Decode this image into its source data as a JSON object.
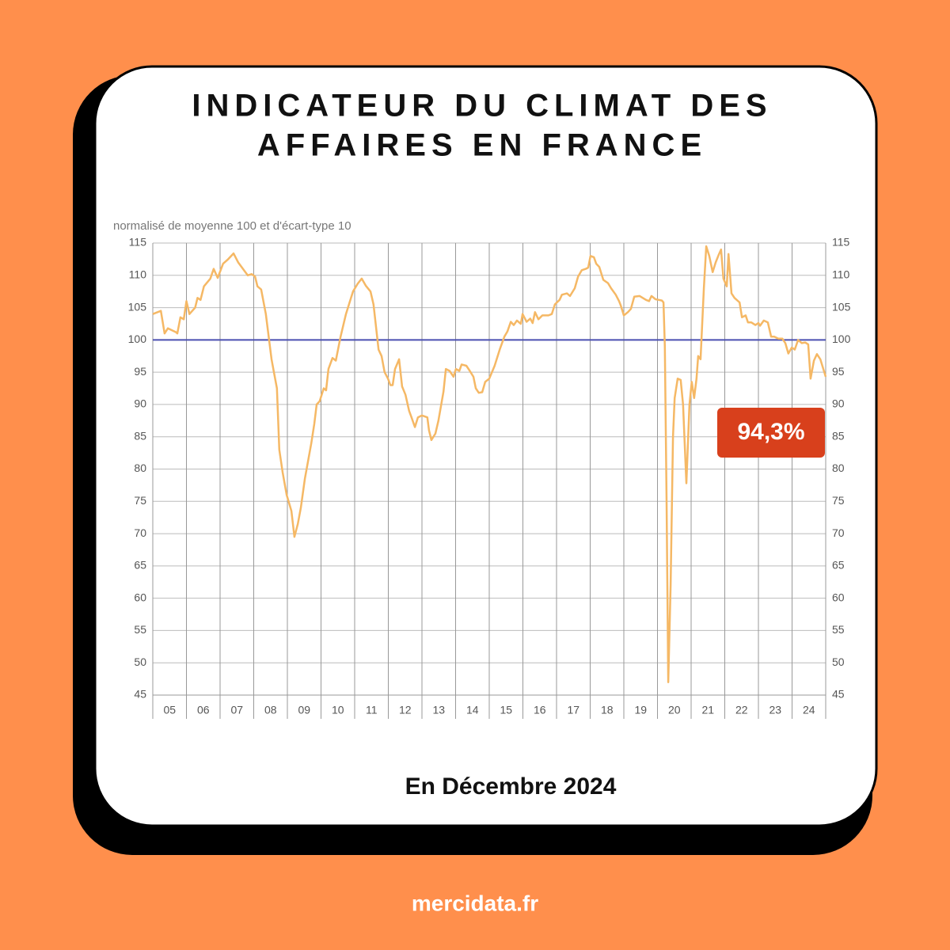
{
  "chart_data": {
    "type": "line",
    "title": [
      "INDICATEUR DU CLIMAT DES",
      "AFFAIRES EN FRANCE"
    ],
    "y_label": "normalisé de moyenne 100 et d'écart-type 10",
    "color": "#f5b865",
    "reference_line": 100,
    "reference_color": "#4a4fb0",
    "annotation": "94,3%",
    "grid": true,
    "x": [
      5.0,
      5.24,
      5.35,
      5.45,
      5.69,
      5.73,
      5.82,
      5.92,
      6.0,
      6.09,
      6.26,
      6.33,
      6.42,
      6.52,
      6.71,
      6.81,
      6.93,
      7.09,
      7.24,
      7.4,
      7.54,
      7.82,
      7.94,
      8.04,
      8.11,
      8.22,
      8.36,
      8.53,
      8.6,
      8.69,
      8.76,
      8.86,
      8.98,
      9.12,
      9.21,
      9.31,
      9.4,
      9.52,
      9.71,
      9.8,
      9.87,
      9.96,
      10.08,
      10.15,
      10.22,
      10.34,
      10.44,
      10.58,
      10.74,
      10.95,
      11.09,
      11.21,
      11.33,
      11.47,
      11.56,
      11.71,
      11.8,
      11.89,
      11.99,
      12.06,
      12.13,
      12.2,
      12.32,
      12.41,
      12.51,
      12.62,
      12.69,
      12.79,
      12.88,
      13.0,
      13.16,
      13.21,
      13.28,
      13.4,
      13.49,
      13.64,
      13.71,
      13.82,
      13.94,
      14.01,
      14.11,
      14.18,
      14.32,
      14.41,
      14.53,
      14.6,
      14.69,
      14.79,
      14.88,
      15.0,
      15.16,
      15.31,
      15.45,
      15.54,
      15.64,
      15.73,
      15.82,
      15.94,
      15.99,
      16.11,
      16.22,
      16.29,
      16.36,
      16.46,
      16.58,
      16.76,
      16.86,
      16.95,
      17.09,
      17.16,
      17.31,
      17.4,
      17.54,
      17.64,
      17.75,
      17.87,
      17.94,
      18.01,
      18.11,
      18.18,
      18.27,
      18.39,
      18.53,
      18.62,
      18.76,
      18.86,
      18.91,
      19.0,
      19.12,
      19.21,
      19.31,
      19.47,
      19.66,
      19.75,
      19.82,
      19.94,
      20.04,
      20.13,
      20.18,
      20.22,
      20.27,
      20.32,
      20.39,
      20.46,
      20.51,
      20.6,
      20.69,
      20.76,
      20.86,
      20.95,
      21.02,
      21.09,
      21.16,
      21.21,
      21.28,
      21.38,
      21.45,
      21.54,
      21.64,
      21.73,
      21.82,
      21.89,
      21.96,
      22.06,
      22.11,
      22.2,
      22.29,
      22.44,
      22.51,
      22.62,
      22.69,
      22.79,
      22.91,
      23.0,
      23.05,
      23.16,
      23.28,
      23.38,
      23.47,
      23.59,
      23.71,
      23.8,
      23.89,
      23.99,
      24.08,
      24.18,
      24.29,
      24.39,
      24.48,
      24.55,
      24.65,
      24.74,
      24.84,
      25.0
    ],
    "values": [
      104,
      104.5,
      101,
      101.8,
      101.2,
      101,
      103.5,
      103.2,
      106,
      104,
      105,
      106.5,
      106.2,
      108.3,
      109.5,
      111,
      109.6,
      111.8,
      112.5,
      113.4,
      112,
      110,
      110.2,
      109.8,
      108.3,
      107.8,
      104,
      97,
      95,
      92.5,
      83,
      79.5,
      76,
      73.5,
      69.5,
      71.5,
      74,
      78.5,
      84,
      87,
      90,
      90.5,
      92.5,
      92.2,
      95.5,
      97.2,
      96.8,
      100.5,
      104,
      107.5,
      108.7,
      109.5,
      108.4,
      107.5,
      105.5,
      98.5,
      97.5,
      95,
      94,
      93,
      93,
      95.5,
      97,
      92.8,
      91.5,
      89,
      88,
      86.5,
      88,
      88.3,
      88,
      86,
      84.5,
      85.5,
      87.5,
      92,
      95.5,
      95.2,
      94.3,
      95.5,
      95.2,
      96.2,
      96,
      95.3,
      94.3,
      92.5,
      91.8,
      91.9,
      93.5,
      94,
      96,
      98.5,
      100.5,
      101.3,
      102.8,
      102.3,
      103,
      102.5,
      104,
      102.8,
      103.3,
      102.6,
      104.3,
      103.2,
      103.8,
      103.8,
      104,
      105.5,
      106.2,
      107,
      107.2,
      106.8,
      108,
      109.8,
      110.8,
      111,
      111.2,
      113,
      112.8,
      111.8,
      111.3,
      109.3,
      108.8,
      108,
      107,
      106,
      105.3,
      103.8,
      104.3,
      104.8,
      106.7,
      106.8,
      106.2,
      106,
      106.8,
      106.3,
      106.2,
      106.1,
      105.8,
      99,
      75,
      47,
      62,
      85,
      91,
      94,
      93.8,
      90,
      77.8,
      90,
      93.5,
      91,
      94,
      97.5,
      97,
      108,
      114.5,
      113,
      110.5,
      112,
      113.2,
      114,
      109.5,
      108.3,
      113.3,
      107.2,
      106.5,
      105.8,
      103.5,
      103.8,
      102.7,
      102.7,
      102.3,
      102.6,
      102.2,
      103,
      102.7,
      100.5,
      100.5,
      100.2,
      100.2,
      99.5,
      97.9,
      98.8,
      98.5,
      100,
      99.5,
      99.6,
      99.3,
      94,
      96.8,
      97.8,
      97,
      94.3
    ],
    "xlim": [
      5,
      25
    ],
    "xticks": [
      {
        "value": 5.5,
        "label": "05"
      },
      {
        "value": 6.5,
        "label": "06"
      },
      {
        "value": 7.5,
        "label": "07"
      },
      {
        "value": 8.5,
        "label": "08"
      },
      {
        "value": 9.5,
        "label": "09"
      },
      {
        "value": 10.5,
        "label": "10"
      },
      {
        "value": 11.5,
        "label": "11"
      },
      {
        "value": 12.5,
        "label": "12"
      },
      {
        "value": 13.5,
        "label": "13"
      },
      {
        "value": 14.5,
        "label": "14"
      },
      {
        "value": 15.5,
        "label": "15"
      },
      {
        "value": 16.5,
        "label": "16"
      },
      {
        "value": 17.5,
        "label": "17"
      },
      {
        "value": 18.5,
        "label": "18"
      },
      {
        "value": 19.5,
        "label": "19"
      },
      {
        "value": 20.5,
        "label": "20"
      },
      {
        "value": 21.5,
        "label": "21"
      },
      {
        "value": 22.5,
        "label": "22"
      },
      {
        "value": 23.5,
        "label": "23"
      },
      {
        "value": 24.5,
        "label": "24"
      }
    ],
    "ylim": [
      45,
      115
    ],
    "yticks": [
      45,
      50,
      55,
      60,
      65,
      70,
      75,
      80,
      85,
      90,
      95,
      100,
      105,
      110,
      115
    ],
    "y2lim": [
      45,
      115
    ],
    "y2ticks": [
      45,
      50,
      55,
      60,
      65,
      70,
      75,
      80,
      85,
      90,
      95,
      100,
      105,
      110,
      115
    ]
  },
  "caption": "En Décembre 2024",
  "footer": "mercidata.fr"
}
